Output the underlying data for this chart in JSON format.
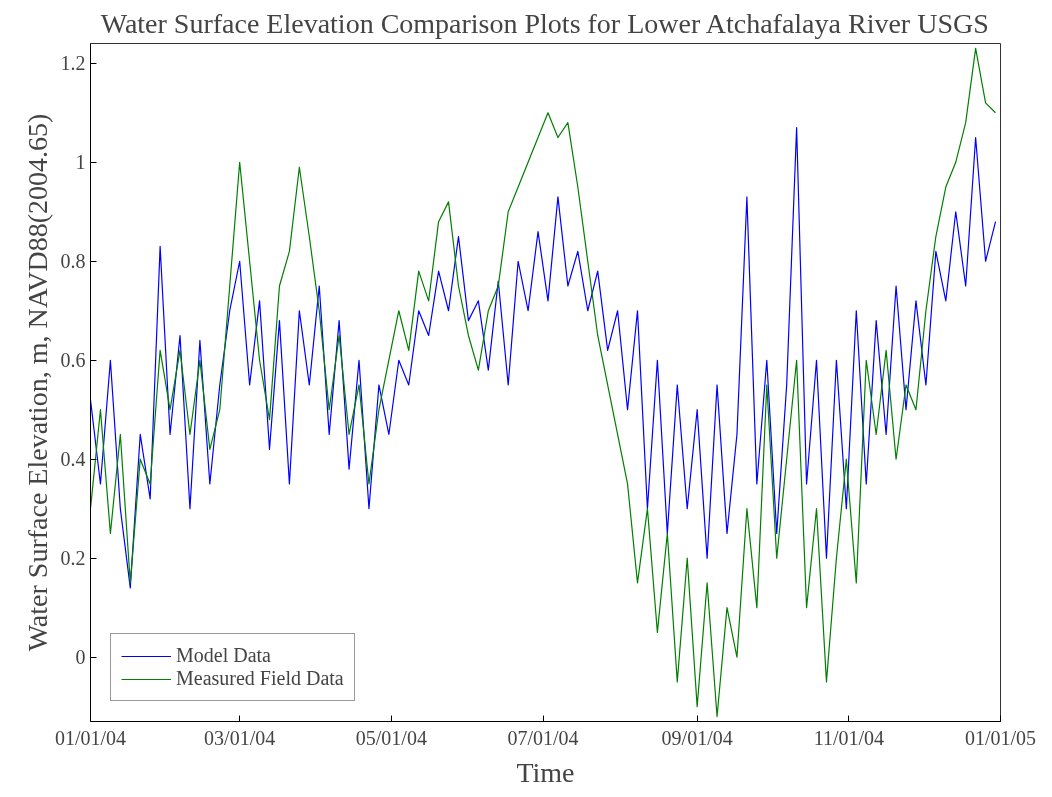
{
  "chart_data": {
    "type": "line",
    "title": "Water Surface Elevation Comparison Plots for Lower Atchafalaya River USGS",
    "xlabel": "Time",
    "ylabel": "Water Surface Elevation, m, NAVD88(2004.65)",
    "x": [
      "2004-01-01",
      "2004-01-05",
      "2004-01-09",
      "2004-01-13",
      "2004-01-17",
      "2004-01-21",
      "2004-01-25",
      "2004-01-29",
      "2004-02-02",
      "2004-02-06",
      "2004-02-10",
      "2004-02-14",
      "2004-02-18",
      "2004-02-22",
      "2004-02-26",
      "2004-03-01",
      "2004-03-05",
      "2004-03-09",
      "2004-03-13",
      "2004-03-17",
      "2004-03-21",
      "2004-03-25",
      "2004-03-29",
      "2004-04-02",
      "2004-04-06",
      "2004-04-10",
      "2004-04-14",
      "2004-04-18",
      "2004-04-22",
      "2004-04-26",
      "2004-04-30",
      "2004-05-04",
      "2004-05-08",
      "2004-05-12",
      "2004-05-16",
      "2004-05-20",
      "2004-05-24",
      "2004-05-28",
      "2004-06-01",
      "2004-06-05",
      "2004-06-09",
      "2004-06-13",
      "2004-06-17",
      "2004-06-21",
      "2004-06-25",
      "2004-06-29",
      "2004-07-03",
      "2004-07-07",
      "2004-07-11",
      "2004-07-15",
      "2004-07-19",
      "2004-07-23",
      "2004-07-27",
      "2004-07-31",
      "2004-08-04",
      "2004-08-08",
      "2004-08-12",
      "2004-08-16",
      "2004-08-20",
      "2004-08-24",
      "2004-08-28",
      "2004-09-01",
      "2004-09-05",
      "2004-09-09",
      "2004-09-13",
      "2004-09-17",
      "2004-09-21",
      "2004-09-25",
      "2004-09-29",
      "2004-10-03",
      "2004-10-07",
      "2004-10-11",
      "2004-10-15",
      "2004-10-19",
      "2004-10-23",
      "2004-10-27",
      "2004-10-31",
      "2004-11-04",
      "2004-11-08",
      "2004-11-12",
      "2004-11-16",
      "2004-11-20",
      "2004-11-24",
      "2004-11-28",
      "2004-12-02",
      "2004-12-06",
      "2004-12-10",
      "2004-12-14",
      "2004-12-18",
      "2004-12-22",
      "2004-12-26",
      "2004-12-30"
    ],
    "series": [
      {
        "name": "Model Data",
        "color": "#0000ff",
        "values": [
          0.52,
          0.35,
          0.6,
          0.3,
          0.14,
          0.45,
          0.32,
          0.83,
          0.45,
          0.65,
          0.3,
          0.64,
          0.35,
          0.55,
          0.7,
          0.8,
          0.55,
          0.72,
          0.42,
          0.68,
          0.35,
          0.7,
          0.55,
          0.75,
          0.45,
          0.68,
          0.38,
          0.6,
          0.3,
          0.55,
          0.45,
          0.6,
          0.55,
          0.7,
          0.65,
          0.78,
          0.7,
          0.85,
          0.68,
          0.72,
          0.58,
          0.76,
          0.55,
          0.8,
          0.7,
          0.86,
          0.72,
          0.93,
          0.75,
          0.82,
          0.7,
          0.78,
          0.62,
          0.7,
          0.5,
          0.7,
          0.3,
          0.6,
          0.25,
          0.55,
          0.3,
          0.5,
          0.2,
          0.55,
          0.25,
          0.45,
          0.93,
          0.35,
          0.6,
          0.25,
          0.55,
          1.07,
          0.35,
          0.6,
          0.2,
          0.6,
          0.3,
          0.7,
          0.35,
          0.68,
          0.45,
          0.75,
          0.5,
          0.72,
          0.55,
          0.82,
          0.72,
          0.9,
          0.75,
          1.05,
          0.8,
          0.88
        ]
      },
      {
        "name": "Measured Field Data",
        "color": "#007f00",
        "values": [
          0.3,
          0.5,
          0.25,
          0.45,
          0.15,
          0.4,
          0.35,
          0.62,
          0.5,
          0.62,
          0.45,
          0.6,
          0.42,
          0.5,
          0.75,
          1.0,
          0.8,
          0.6,
          0.48,
          0.75,
          0.82,
          0.99,
          0.85,
          0.7,
          0.5,
          0.65,
          0.45,
          0.55,
          0.35,
          0.5,
          0.6,
          0.7,
          0.62,
          0.78,
          0.72,
          0.88,
          0.92,
          0.75,
          0.65,
          0.58,
          0.7,
          0.75,
          0.9,
          0.95,
          1.0,
          1.05,
          1.1,
          1.05,
          1.08,
          0.95,
          0.8,
          0.65,
          0.55,
          0.45,
          0.35,
          0.15,
          0.3,
          0.05,
          0.25,
          -0.05,
          0.2,
          -0.1,
          0.15,
          -0.12,
          0.1,
          0.0,
          0.3,
          0.1,
          0.55,
          0.2,
          0.4,
          0.6,
          0.1,
          0.3,
          -0.05,
          0.2,
          0.4,
          0.15,
          0.6,
          0.45,
          0.62,
          0.4,
          0.55,
          0.5,
          0.7,
          0.85,
          0.95,
          1.0,
          1.08,
          1.23,
          1.12,
          1.1
        ]
      }
    ],
    "xlim": [
      "2004-01-01",
      "2005-01-01"
    ],
    "xticks": [
      {
        "value": "2004-01-01",
        "label": "01/01/04"
      },
      {
        "value": "2004-03-01",
        "label": "03/01/04"
      },
      {
        "value": "2004-05-01",
        "label": "05/01/04"
      },
      {
        "value": "2004-07-01",
        "label": "07/01/04"
      },
      {
        "value": "2004-09-01",
        "label": "09/01/04"
      },
      {
        "value": "2004-11-01",
        "label": "11/01/04"
      },
      {
        "value": "2005-01-01",
        "label": "01/01/05"
      }
    ],
    "ylim": [
      -0.13,
      1.24
    ],
    "yticks": [
      0,
      0.2,
      0.4,
      0.6,
      0.8,
      1,
      1.2
    ],
    "grid": false,
    "legend": "bottom left",
    "marker": "none",
    "line_style": "solid"
  }
}
